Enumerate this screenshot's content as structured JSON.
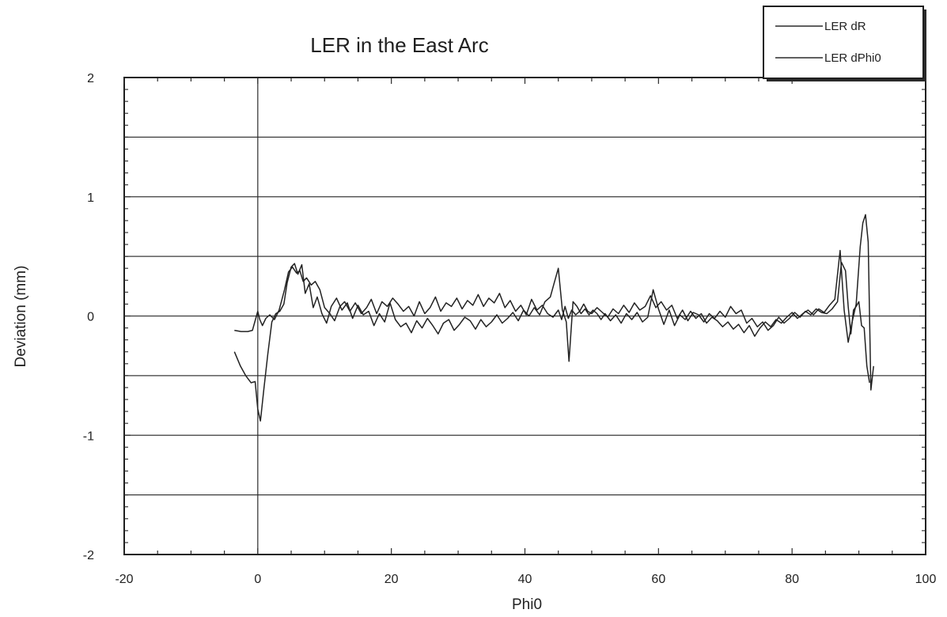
{
  "chart_data": {
    "type": "line",
    "title": "LER  in the East Arc",
    "xlabel": "Phi0",
    "ylabel": "Deviation  (mm)",
    "xlim": [
      -20,
      100
    ],
    "ylim": [
      -2,
      2
    ],
    "x_ticks": [
      -20,
      0,
      20,
      40,
      60,
      80,
      100
    ],
    "y_ticks": [
      2,
      1,
      0,
      -1,
      -2
    ],
    "grid": "horizontal",
    "legend_position": "top-right",
    "series": [
      {
        "name": "LER  dR",
        "x": [
          -3.5,
          -2.5,
          -1.5,
          -0.8,
          -0.3,
          0,
          0.3,
          0.7,
          1.2,
          1.8,
          2.5,
          3.2,
          4,
          4.6,
          5.2,
          5.8,
          6.3,
          6.8,
          7.3,
          8,
          8.6,
          9.3,
          10,
          10.8,
          11.5,
          12.3,
          13,
          13.8,
          14.6,
          15.5,
          16.3,
          17,
          17.8,
          18.6,
          19.4,
          20.2,
          21,
          21.8,
          22.6,
          23.4,
          24.2,
          25,
          25.8,
          26.6,
          27.4,
          28.2,
          29,
          29.8,
          30.6,
          31.4,
          32.2,
          33,
          33.8,
          34.6,
          35.4,
          36.2,
          37,
          37.8,
          38.6,
          39.4,
          40.2,
          41,
          41.8,
          42.6,
          43.4,
          44.2,
          45,
          45.5,
          46,
          46.5,
          47,
          47.6,
          48.2,
          48.8,
          49.4,
          50,
          50.8,
          51.6,
          52.4,
          53.2,
          54,
          54.8,
          55.6,
          56.4,
          57.2,
          58,
          58.8,
          59.6,
          60.4,
          61.2,
          62,
          62.8,
          63.6,
          64.4,
          65.2,
          66,
          66.8,
          67.6,
          68.4,
          69.2,
          70,
          70.8,
          71.6,
          72.4,
          73.2,
          74,
          74.8,
          75.6,
          76.4,
          77.2,
          78,
          78.8,
          79.6,
          80.4,
          81.2,
          82,
          82.8,
          83.6,
          84.4,
          85.2,
          86,
          86.8,
          87.4,
          88,
          88.4,
          88.8,
          89.2,
          89.6,
          90,
          90.4,
          90.8,
          91.2,
          91.6
        ],
        "y": [
          -0.12,
          -0.13,
          -0.13,
          -0.12,
          -0.02,
          0.04,
          -0.03,
          -0.08,
          -0.02,
          0.01,
          -0.03,
          0.05,
          0.22,
          0.37,
          0.41,
          0.36,
          0.38,
          0.29,
          0.32,
          0.26,
          0.29,
          0.22,
          0.07,
          0.02,
          -0.04,
          0.08,
          0.12,
          0.04,
          0.11,
          0.02,
          0.07,
          0.14,
          0.02,
          0.12,
          0.08,
          0.15,
          0.1,
          0.04,
          0.08,
          0.0,
          0.12,
          0.02,
          0.07,
          0.16,
          0.04,
          0.11,
          0.08,
          0.15,
          0.06,
          0.13,
          0.09,
          0.18,
          0.08,
          0.15,
          0.11,
          0.19,
          0.07,
          0.13,
          0.04,
          0.09,
          0.01,
          0.14,
          0.05,
          0.09,
          0.02,
          -0.01,
          0.05,
          -0.03,
          0.08,
          -0.02,
          0.05,
          0.01,
          0.04,
          0.1,
          0.04,
          0.02,
          0.07,
          0.03,
          -0.01,
          0.06,
          0.02,
          0.09,
          0.03,
          0.11,
          0.05,
          0.08,
          0.17,
          0.07,
          0.12,
          0.05,
          0.09,
          -0.02,
          0.05,
          -0.04,
          0.03,
          0.01,
          -0.05,
          0.02,
          -0.02,
          0.04,
          -0.01,
          0.08,
          0.02,
          0.05,
          -0.06,
          -0.02,
          -0.09,
          -0.05,
          -0.12,
          -0.08,
          -0.01,
          -0.06,
          -0.02,
          0.03,
          -0.01,
          0.04,
          0.01,
          0.06,
          0.03,
          0.02,
          0.06,
          0.12,
          0.45,
          0.38,
          0.08,
          -0.15,
          0.05,
          0.08,
          0.12,
          -0.08,
          -0.1,
          -0.42,
          -0.56
        ],
        "color": "#2a2a2a"
      },
      {
        "name": "LER  dPhi0",
        "x": [
          -3.5,
          -2.6,
          -1.8,
          -1,
          -0.4,
          0,
          0.4,
          0.9,
          1.5,
          2.1,
          2.7,
          3.3,
          3.9,
          4.4,
          5,
          5.5,
          6,
          6.6,
          7.1,
          7.7,
          8.3,
          8.9,
          9.6,
          10.3,
          11,
          11.8,
          12.6,
          13.4,
          14.2,
          15,
          15.8,
          16.6,
          17.4,
          18.2,
          19,
          19.8,
          20.6,
          21.4,
          22.2,
          23,
          23.8,
          24.6,
          25.4,
          26.2,
          27,
          27.8,
          28.6,
          29.4,
          30.2,
          31,
          31.8,
          32.6,
          33.4,
          34.2,
          35,
          35.8,
          36.6,
          37.4,
          38.2,
          39,
          39.8,
          40.6,
          41.4,
          42.2,
          43,
          43.8,
          44.4,
          45,
          45.6,
          46.2,
          46.6,
          47.2,
          47.8,
          48.4,
          49,
          49.6,
          50.2,
          50.8,
          51.4,
          52,
          52.8,
          53.6,
          54.4,
          55.2,
          56,
          56.8,
          57.6,
          58.4,
          59.2,
          60,
          60.8,
          61.6,
          62.4,
          63.2,
          64,
          64.8,
          65.6,
          66.4,
          67.2,
          68,
          68.8,
          69.6,
          70.4,
          71.2,
          72,
          72.8,
          73.6,
          74.4,
          75.2,
          76,
          76.8,
          77.6,
          78.4,
          79.2,
          80,
          80.8,
          81.6,
          82.4,
          83.2,
          84,
          84.8,
          85.6,
          86.4,
          87.2,
          87.8,
          88.4,
          89,
          89.6,
          90.2,
          90.6,
          91,
          91.4,
          91.8,
          92.2
        ],
        "y": [
          -0.3,
          -0.42,
          -0.5,
          -0.56,
          -0.55,
          -0.78,
          -0.88,
          -0.62,
          -0.32,
          -0.05,
          0.02,
          0.04,
          0.1,
          0.28,
          0.41,
          0.44,
          0.35,
          0.43,
          0.19,
          0.27,
          0.07,
          0.16,
          0.02,
          -0.06,
          0.08,
          0.15,
          0.05,
          0.11,
          -0.02,
          0.09,
          0.01,
          0.04,
          -0.08,
          0.02,
          -0.05,
          0.11,
          -0.03,
          -0.09,
          -0.06,
          -0.14,
          -0.04,
          -0.1,
          -0.02,
          -0.08,
          -0.15,
          -0.06,
          -0.03,
          -0.12,
          -0.07,
          -0.01,
          -0.04,
          -0.11,
          -0.03,
          -0.09,
          -0.05,
          0.01,
          -0.06,
          -0.02,
          0.03,
          -0.04,
          0.05,
          0.0,
          0.07,
          0.01,
          0.12,
          0.16,
          0.28,
          0.4,
          0.05,
          -0.05,
          -0.38,
          0.12,
          0.08,
          0.02,
          0.06,
          0.01,
          0.05,
          0.02,
          -0.03,
          0.02,
          -0.04,
          0.01,
          -0.06,
          0.02,
          -0.03,
          0.03,
          -0.05,
          -0.01,
          0.22,
          0.06,
          -0.07,
          0.05,
          -0.08,
          0.01,
          -0.03,
          0.04,
          -0.02,
          0.02,
          -0.06,
          -0.01,
          -0.04,
          -0.09,
          -0.05,
          -0.11,
          -0.07,
          -0.14,
          -0.08,
          -0.17,
          -0.1,
          -0.05,
          -0.09,
          -0.03,
          -0.06,
          -0.01,
          0.03,
          -0.02,
          0.02,
          0.05,
          0.01,
          0.06,
          0.03,
          0.09,
          0.14,
          0.55,
          0.05,
          -0.22,
          -0.05,
          0.1,
          0.58,
          0.78,
          0.85,
          0.62,
          -0.62,
          -0.42
        ]
      }
    ]
  }
}
